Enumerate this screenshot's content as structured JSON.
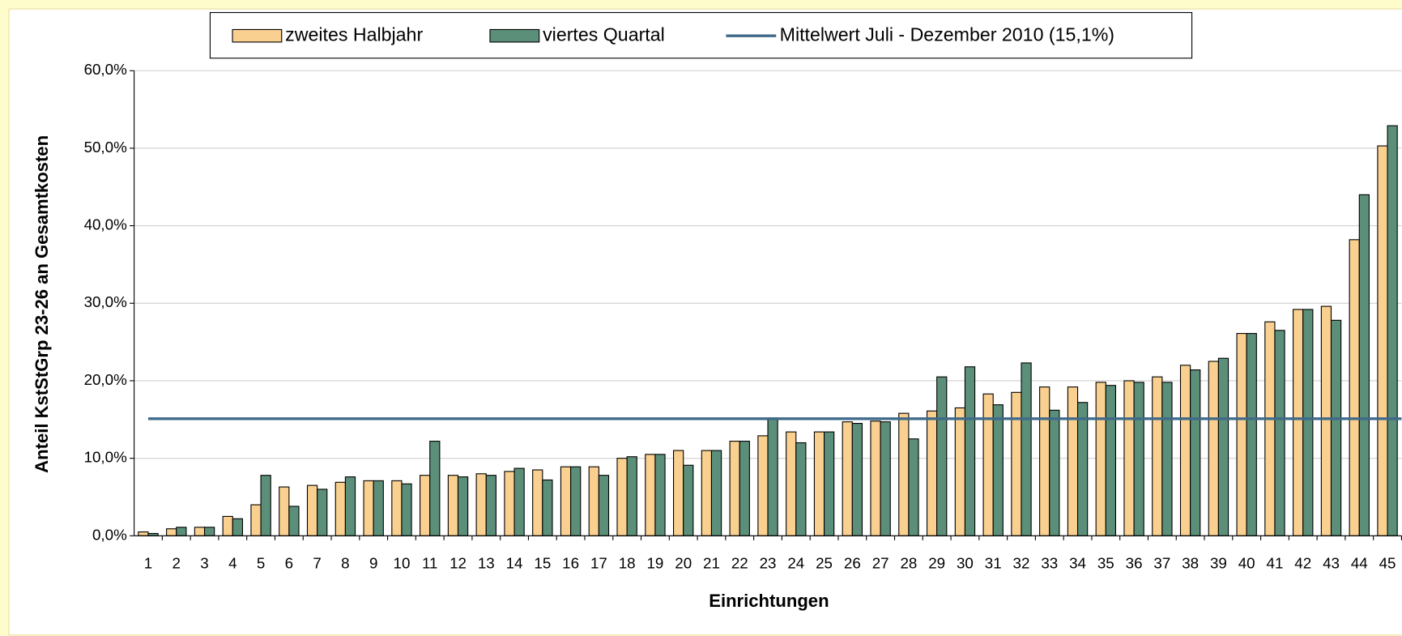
{
  "chart_data": {
    "type": "bar",
    "xlabel": "Einrichtungen",
    "ylabel": "Anteil KstStGrp 23-26 an Gesamtkosten",
    "categories": [
      "1",
      "2",
      "3",
      "4",
      "5",
      "6",
      "7",
      "8",
      "9",
      "10",
      "11",
      "12",
      "13",
      "14",
      "15",
      "16",
      "17",
      "18",
      "19",
      "20",
      "21",
      "22",
      "23",
      "24",
      "25",
      "26",
      "27",
      "28",
      "29",
      "30",
      "31",
      "32",
      "33",
      "34",
      "35",
      "36",
      "37",
      "38",
      "39",
      "40",
      "41",
      "42",
      "43",
      "44",
      "45"
    ],
    "series": [
      {
        "name": "zweites Halbjahr",
        "color": "#f9d08f",
        "values": [
          0.5,
          0.9,
          1.1,
          2.5,
          4.0,
          6.3,
          6.5,
          6.9,
          7.1,
          7.1,
          7.8,
          7.8,
          8.0,
          8.3,
          8.5,
          8.9,
          8.9,
          10.0,
          10.5,
          11.0,
          11.0,
          12.2,
          12.9,
          13.4,
          13.4,
          14.7,
          14.8,
          15.8,
          16.1,
          16.5,
          18.3,
          18.5,
          19.2,
          19.2,
          19.8,
          20.0,
          20.5,
          22.0,
          22.5,
          26.1,
          27.6,
          29.2,
          29.6,
          38.2,
          50.3
        ]
      },
      {
        "name": "viertes Quartal",
        "color": "#5b8f79",
        "values": [
          0.3,
          1.1,
          1.1,
          2.2,
          7.8,
          3.8,
          6.0,
          7.6,
          7.1,
          6.7,
          12.2,
          7.6,
          7.8,
          8.7,
          7.2,
          8.9,
          7.8,
          10.2,
          10.5,
          9.1,
          11.0,
          12.2,
          15.2,
          12.0,
          13.4,
          14.5,
          14.7,
          12.5,
          20.5,
          21.8,
          16.9,
          22.3,
          16.2,
          17.2,
          19.4,
          19.8,
          19.8,
          21.4,
          22.9,
          26.1,
          26.5,
          29.2,
          27.8,
          44.0,
          52.9
        ]
      }
    ],
    "reference_line": {
      "name": "Mittelwert Juli - Dezember 2010 (15,1%)",
      "value": 15.1,
      "color": "#3f6a8a"
    },
    "ylim": [
      0,
      60
    ],
    "yticks": [
      {
        "value": 0,
        "label": "0,0%"
      },
      {
        "value": 10,
        "label": "10,0%"
      },
      {
        "value": 20,
        "label": "20,0%"
      },
      {
        "value": 30,
        "label": "30,0%"
      },
      {
        "value": 40,
        "label": "40,0%"
      },
      {
        "value": 50,
        "label": "50,0%"
      },
      {
        "value": 60,
        "label": "60,0%"
      }
    ],
    "grid": true
  }
}
